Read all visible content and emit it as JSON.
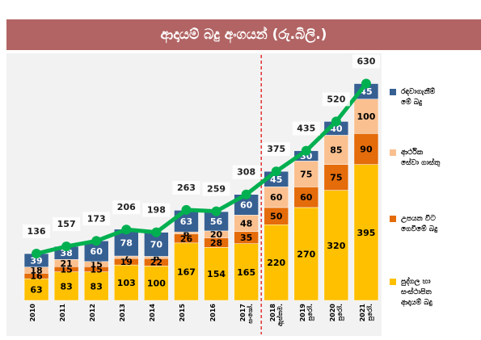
{
  "chart_data": {
    "type": "bar",
    "stacked": true,
    "title": "ආදායම් බදු අංගයන් (රු.බිලි.)",
    "categories": [
      "2010",
      "2011",
      "2012",
      "2013",
      "2014",
      "2015",
      "2016",
      "2017\nසංශෝ.",
      "2018\nඇස්තම.",
      "2019\nපුරෝ.",
      "2020\nපුරෝ.",
      "2021\nපුරෝ."
    ],
    "series": [
      {
        "name": "පුද්ගල හා\nසංස්ථාපිත\nආදායම් බදු",
        "color": "#ffc000",
        "values": [
          63,
          83,
          83,
          103,
          100,
          167,
          154,
          165,
          220,
          270,
          320,
          395
        ]
      },
      {
        "name": "උපයන විට\nගෙවීමේ බදු",
        "color": "#e46c0a",
        "values": [
          16,
          15,
          15,
          19,
          22,
          26,
          28,
          35,
          50,
          60,
          75,
          90
        ]
      },
      {
        "name": "ආර්ථික\nසේවා ගාස්තු",
        "color": "#fac090",
        "values": [
          18,
          21,
          15,
          7,
          6,
          6,
          20,
          48,
          60,
          75,
          85,
          100
        ]
      },
      {
        "name": "රඳවාගැනීම්\nමේ බදු",
        "color": "#376092",
        "values": [
          39,
          38,
          60,
          78,
          70,
          63,
          56,
          60,
          45,
          30,
          40,
          45
        ]
      }
    ],
    "totals": [
      136,
      157,
      173,
      206,
      198,
      263,
      259,
      308,
      375,
      435,
      520,
      630
    ],
    "totals_color": "#00b050",
    "ylim": [
      0,
      650
    ]
  }
}
